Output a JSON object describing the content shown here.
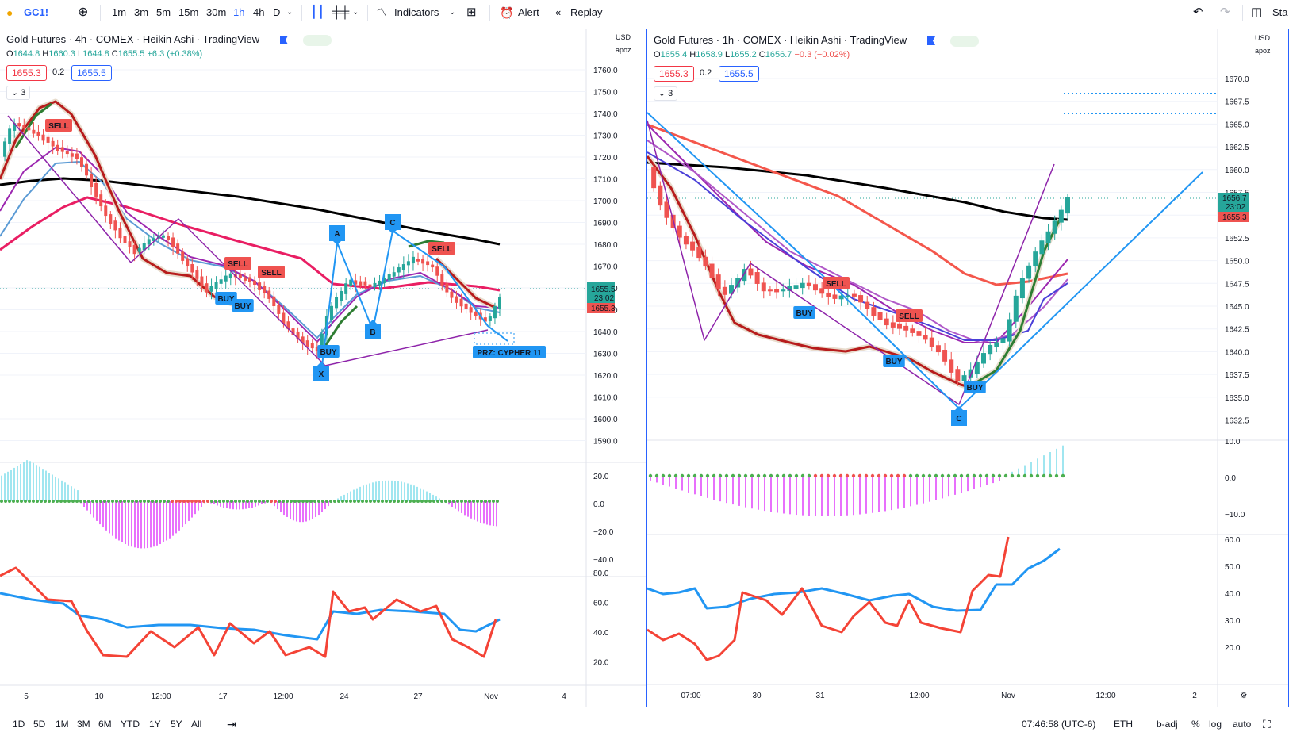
{
  "toolbar": {
    "symbol": "GC1!",
    "intervals": [
      "1m",
      "3m",
      "5m",
      "15m",
      "30m",
      "1h",
      "4h",
      "D"
    ],
    "active_interval": "1h",
    "indicators_label": "Indicators",
    "alert_label": "Alert",
    "replay_label": "Replay",
    "right_cut_text": "Sta"
  },
  "left": {
    "title": "Gold Futures · 4h · COMEX · Heikin Ashi · TradingView",
    "ohlc": {
      "o": "1644.8",
      "h": "1660.3",
      "l": "1644.8",
      "c": "1655.5",
      "chg": "+6.3 (+0.38%)"
    },
    "bid": "1655.3",
    "spread": "0.2",
    "ask": "1655.5",
    "collapse": "3",
    "currency": "USD",
    "scale_mode": "apoz",
    "price_ticks": [
      "1760.0",
      "1750.0",
      "1740.0",
      "1730.0",
      "1720.0",
      "1710.0",
      "1700.0",
      "1690.0",
      "1680.0",
      "1670.0",
      "1660.0",
      "1650.0",
      "1640.0",
      "1630.0",
      "1620.0",
      "1610.0",
      "1600.0",
      "1590.0"
    ],
    "price_tag_1": "1655.5",
    "price_tag_countdown": "23:02",
    "price_tag_2": "1655.3",
    "osc_ticks": [
      "20.0",
      "0.0",
      "−20.0",
      "−40.0"
    ],
    "rsi_ticks": [
      "80.0",
      "60.0",
      "40.0",
      "20.0"
    ],
    "time_ticks": [
      "5",
      "10",
      "12:00",
      "17",
      "12:00",
      "24",
      "27",
      "Nov",
      "4"
    ],
    "labels": {
      "sell": "SELL",
      "buy": "BUY",
      "x": "X",
      "a": "A",
      "b": "B",
      "c": "C",
      "prz": "PRZ: CYPHER 11"
    }
  },
  "right": {
    "title": "Gold Futures · 1h · COMEX · Heikin Ashi · TradingView",
    "ohlc": {
      "o": "1655.4",
      "h": "1658.9",
      "l": "1655.2",
      "c": "1656.7",
      "chg": "−0.3 (−0.02%)"
    },
    "bid": "1655.3",
    "spread": "0.2",
    "ask": "1655.5",
    "collapse": "3",
    "currency": "USD",
    "scale_mode": "apoz",
    "price_ticks": [
      "1670.0",
      "1667.5",
      "1665.0",
      "1662.5",
      "1660.0",
      "1657.5",
      "1655.0",
      "1652.5",
      "1650.0",
      "1647.5",
      "1645.0",
      "1642.5",
      "1640.0",
      "1637.5",
      "1635.0",
      "1632.5"
    ],
    "price_tag_1": "1656.7",
    "price_tag_countdown": "23:02",
    "price_tag_2": "1655.3",
    "osc_ticks": [
      "10.0",
      "0.0",
      "−10.0"
    ],
    "rsi_ticks": [
      "60.0",
      "50.0",
      "40.0",
      "30.0",
      "20.0"
    ],
    "time_ticks": [
      "07:00",
      "30",
      "31",
      "12:00",
      "Nov",
      "12:00",
      "2"
    ],
    "labels": {
      "sell": "SELL",
      "buy": "BUY",
      "c": "C"
    }
  },
  "bottom": {
    "ranges": [
      "1D",
      "5D",
      "1M",
      "3M",
      "6M",
      "YTD",
      "1Y",
      "5Y",
      "All"
    ],
    "clock": "07:46:58 (UTC-6)",
    "session": "ETH",
    "badj": "b-adj",
    "percent": "%",
    "log": "log",
    "auto": "auto"
  },
  "colors": {
    "up": "#26a69a",
    "down": "#ef5350",
    "accent": "#2962ff",
    "ema_long": "#000000",
    "ema_mid": "#e91e63",
    "ema_fast": "#9c27b0",
    "pattern": "#2196f3",
    "osc_pos": "#80deea",
    "osc_neg": "#e040fb"
  }
}
